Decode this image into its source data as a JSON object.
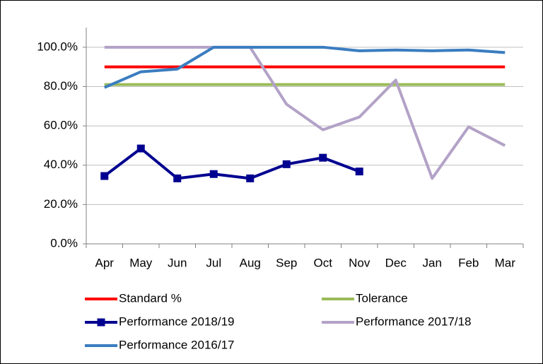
{
  "chart_data": {
    "type": "line",
    "categories": [
      "Apr",
      "May",
      "Jun",
      "Jul",
      "Aug",
      "Sep",
      "Oct",
      "Nov",
      "Dec",
      "Jan",
      "Feb",
      "Mar"
    ],
    "series": [
      {
        "name": "Standard %",
        "color": "#ff0000",
        "values": [
          90,
          90,
          90,
          90,
          90,
          90,
          90,
          90,
          90,
          90,
          90,
          90
        ]
      },
      {
        "name": "Tolerance",
        "color": "#9bbb59",
        "values": [
          81,
          81,
          81,
          81,
          81,
          81,
          81,
          81,
          81,
          81,
          81,
          81
        ]
      },
      {
        "name": "Performance 2018/19",
        "color": "#000090",
        "marker": "square",
        "values": [
          34.5,
          48.5,
          33.3,
          35.5,
          33.3,
          40.5,
          43.8,
          36.8,
          null,
          null,
          null,
          null
        ]
      },
      {
        "name": "Performance 2017/18",
        "color": "#b3a2c7",
        "values": [
          100,
          100,
          100,
          100,
          100,
          71,
          58,
          64.5,
          83.3,
          33.3,
          59.5,
          50
        ]
      },
      {
        "name": "Performance 2016/17",
        "color": "#3a7dc0",
        "values": [
          79.5,
          87.5,
          88.9,
          100,
          100,
          100,
          100,
          98.2,
          98.6,
          98.2,
          98.6,
          97.3
        ]
      }
    ],
    "ylim": [
      0,
      110
    ],
    "yticks": [
      {
        "value": 0,
        "label": "0.0%"
      },
      {
        "value": 20,
        "label": "20.0%"
      },
      {
        "value": 40,
        "label": "40.0%"
      },
      {
        "value": 60,
        "label": "60.0%"
      },
      {
        "value": 80,
        "label": "80.0%"
      },
      {
        "value": 100,
        "label": "100.0%"
      }
    ],
    "grid": true,
    "legend": "bottom"
  }
}
